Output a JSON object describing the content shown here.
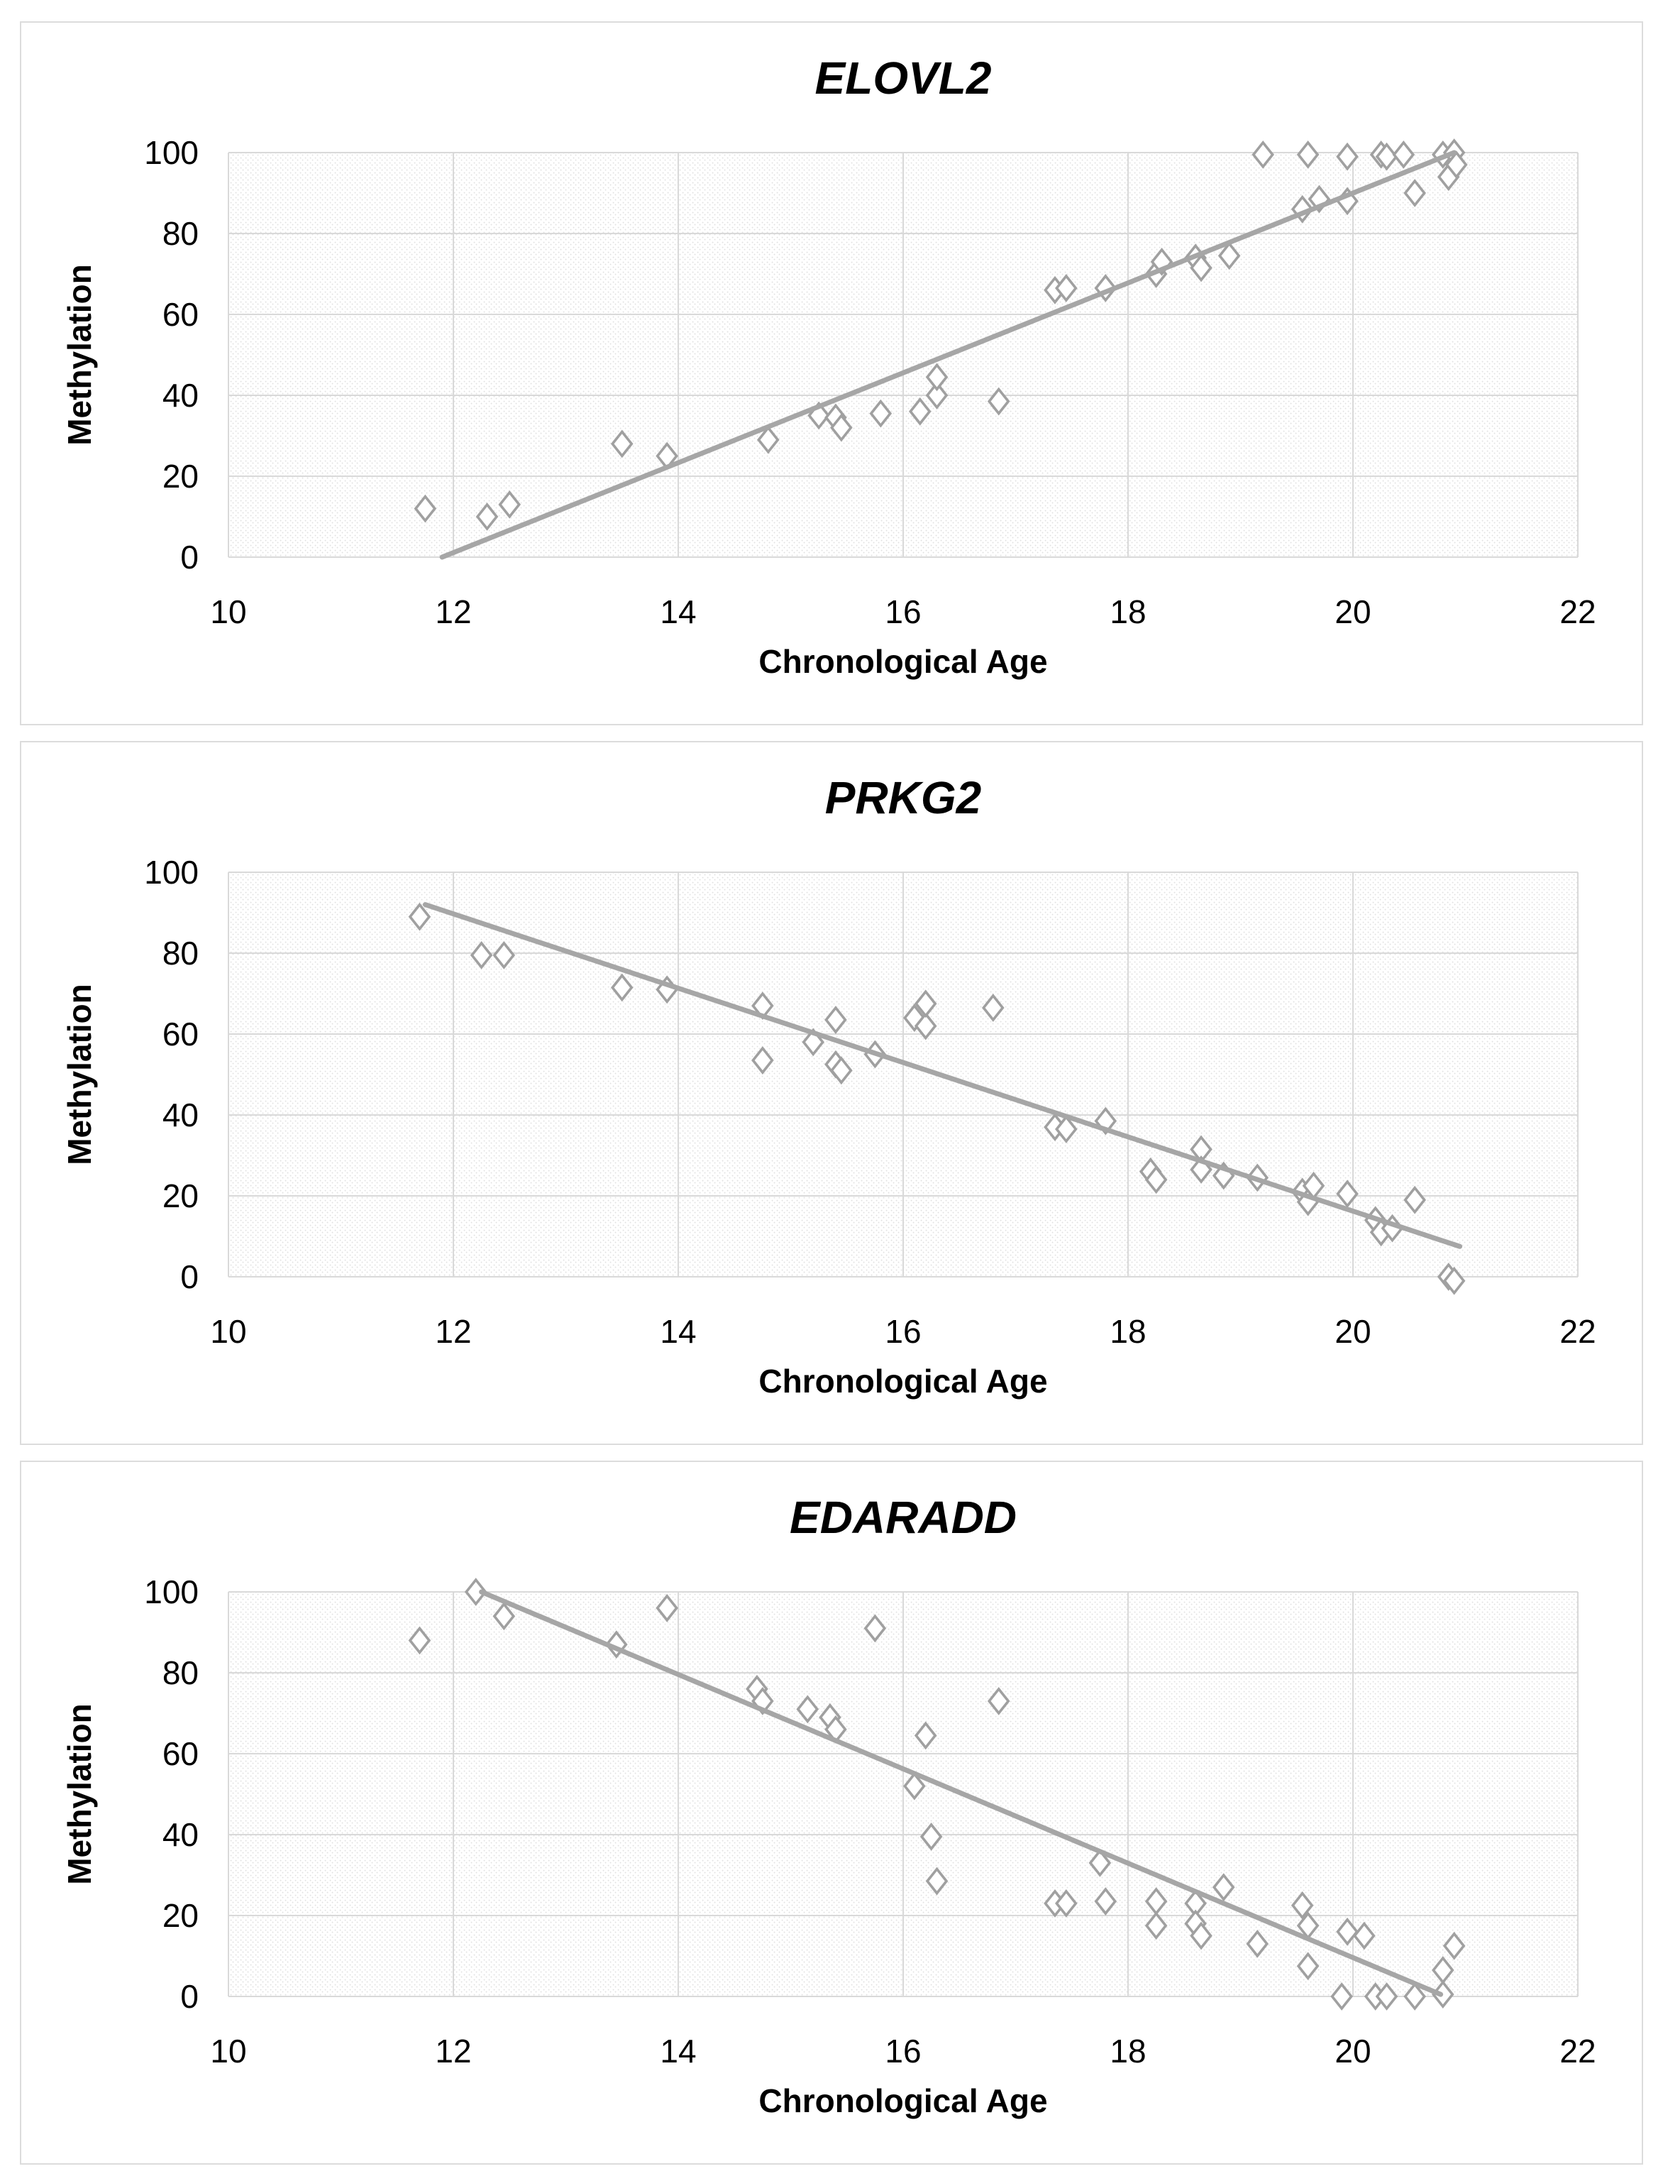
{
  "page": {
    "background": "#ffffff",
    "panel_border_color": "#dcdcdc"
  },
  "style": {
    "marker_color": "#a0a0a0",
    "marker_fill": "#ffffff",
    "trend_color": "#a6a6a6",
    "grid_color": "#d9d9d9",
    "hatch_color": "#e2e2e2",
    "text_color": "#000000",
    "marker_shape": "open-diamond",
    "plot_fill_pattern": "light-downward-diagonal-hatch"
  },
  "chart_data": [
    {
      "type": "scatter",
      "title": "ELOVL2",
      "xlabel": "Chronological Age",
      "ylabel": "Methylation",
      "xlim": [
        10,
        22
      ],
      "ylim": [
        0,
        100
      ],
      "xticks": [
        10,
        12,
        14,
        16,
        18,
        20,
        22
      ],
      "yticks": [
        0,
        20,
        40,
        60,
        80,
        100
      ],
      "grid": true,
      "legend": false,
      "trendline": {
        "x1": 11.9,
        "y1": 0,
        "x2": 20.9,
        "y2": 100
      },
      "points": [
        [
          11.75,
          12
        ],
        [
          12.3,
          10
        ],
        [
          12.5,
          13
        ],
        [
          13.5,
          28
        ],
        [
          13.9,
          25
        ],
        [
          14.8,
          29
        ],
        [
          15.25,
          35
        ],
        [
          15.4,
          34.5
        ],
        [
          15.45,
          32
        ],
        [
          15.8,
          35.5
        ],
        [
          16.15,
          36
        ],
        [
          16.3,
          40
        ],
        [
          16.3,
          44.5
        ],
        [
          16.85,
          38.5
        ],
        [
          17.35,
          66
        ],
        [
          17.45,
          66.5
        ],
        [
          17.8,
          66.5
        ],
        [
          18.25,
          70
        ],
        [
          18.3,
          73
        ],
        [
          18.6,
          74
        ],
        [
          18.65,
          71.5
        ],
        [
          18.9,
          74.5
        ],
        [
          19.2,
          99.5
        ],
        [
          19.55,
          86
        ],
        [
          19.6,
          99.5
        ],
        [
          19.7,
          88.5
        ],
        [
          19.95,
          88
        ],
        [
          19.95,
          99
        ],
        [
          20.25,
          99.5
        ],
        [
          20.3,
          99
        ],
        [
          20.45,
          99.5
        ],
        [
          20.55,
          90
        ],
        [
          20.8,
          99.5
        ],
        [
          20.85,
          94
        ],
        [
          20.9,
          100
        ],
        [
          20.92,
          97
        ]
      ]
    },
    {
      "type": "scatter",
      "title": "PRKG2",
      "xlabel": "Chronological Age",
      "ylabel": "Methylation",
      "xlim": [
        10,
        22
      ],
      "ylim": [
        0,
        100
      ],
      "xticks": [
        10,
        12,
        14,
        16,
        18,
        20,
        22
      ],
      "yticks": [
        0,
        20,
        40,
        60,
        80,
        100
      ],
      "grid": true,
      "legend": false,
      "trendline": {
        "x1": 11.75,
        "y1": 92,
        "x2": 20.95,
        "y2": 7.5
      },
      "points": [
        [
          11.7,
          89
        ],
        [
          12.25,
          79.5
        ],
        [
          12.45,
          79.5
        ],
        [
          13.5,
          71.5
        ],
        [
          13.9,
          71
        ],
        [
          14.75,
          67
        ],
        [
          14.75,
          53.5
        ],
        [
          15.2,
          58
        ],
        [
          15.4,
          63.5
        ],
        [
          15.4,
          52.5
        ],
        [
          15.45,
          51
        ],
        [
          15.75,
          55
        ],
        [
          16.1,
          64
        ],
        [
          16.2,
          62
        ],
        [
          16.2,
          67.5
        ],
        [
          16.8,
          66.5
        ],
        [
          17.35,
          37
        ],
        [
          17.45,
          36.5
        ],
        [
          17.8,
          38.5
        ],
        [
          18.2,
          26
        ],
        [
          18.25,
          24
        ],
        [
          18.65,
          31.5
        ],
        [
          18.65,
          26.5
        ],
        [
          18.85,
          25
        ],
        [
          19.15,
          24.5
        ],
        [
          19.55,
          21
        ],
        [
          19.6,
          18.5
        ],
        [
          19.65,
          22.5
        ],
        [
          19.95,
          20.5
        ],
        [
          20.2,
          14
        ],
        [
          20.25,
          11
        ],
        [
          20.35,
          12
        ],
        [
          20.55,
          19
        ],
        [
          20.85,
          0
        ],
        [
          20.9,
          -1
        ]
      ]
    },
    {
      "type": "scatter",
      "title": "EDARADD",
      "xlabel": "Chronological Age",
      "ylabel": "Methylation",
      "xlim": [
        10,
        22
      ],
      "ylim": [
        0,
        100
      ],
      "xticks": [
        10,
        12,
        14,
        16,
        18,
        20,
        22
      ],
      "yticks": [
        0,
        20,
        40,
        60,
        80,
        100
      ],
      "grid": true,
      "legend": false,
      "trendline": {
        "x1": 12.25,
        "y1": 100,
        "x2": 20.78,
        "y2": 0.5
      },
      "points": [
        [
          11.7,
          88
        ],
        [
          12.2,
          100
        ],
        [
          12.45,
          94
        ],
        [
          13.45,
          87
        ],
        [
          13.9,
          96
        ],
        [
          14.7,
          76
        ],
        [
          14.75,
          73
        ],
        [
          15.15,
          71
        ],
        [
          15.35,
          69
        ],
        [
          15.4,
          66
        ],
        [
          15.75,
          91
        ],
        [
          16.1,
          52
        ],
        [
          16.2,
          64.5
        ],
        [
          16.25,
          39.5
        ],
        [
          16.3,
          28.5
        ],
        [
          16.85,
          73
        ],
        [
          17.35,
          23
        ],
        [
          17.45,
          23
        ],
        [
          17.75,
          33
        ],
        [
          17.8,
          23.5
        ],
        [
          18.25,
          23.5
        ],
        [
          18.25,
          17.5
        ],
        [
          18.6,
          23
        ],
        [
          18.6,
          18
        ],
        [
          18.65,
          15
        ],
        [
          18.85,
          27
        ],
        [
          19.15,
          13
        ],
        [
          19.55,
          22.5
        ],
        [
          19.6,
          17.5
        ],
        [
          19.6,
          7.5
        ],
        [
          19.9,
          0
        ],
        [
          19.95,
          16
        ],
        [
          20.1,
          15
        ],
        [
          20.2,
          0
        ],
        [
          20.3,
          0
        ],
        [
          20.55,
          0
        ],
        [
          20.8,
          6.5
        ],
        [
          20.8,
          0.5
        ],
        [
          20.9,
          12.5
        ]
      ]
    }
  ]
}
